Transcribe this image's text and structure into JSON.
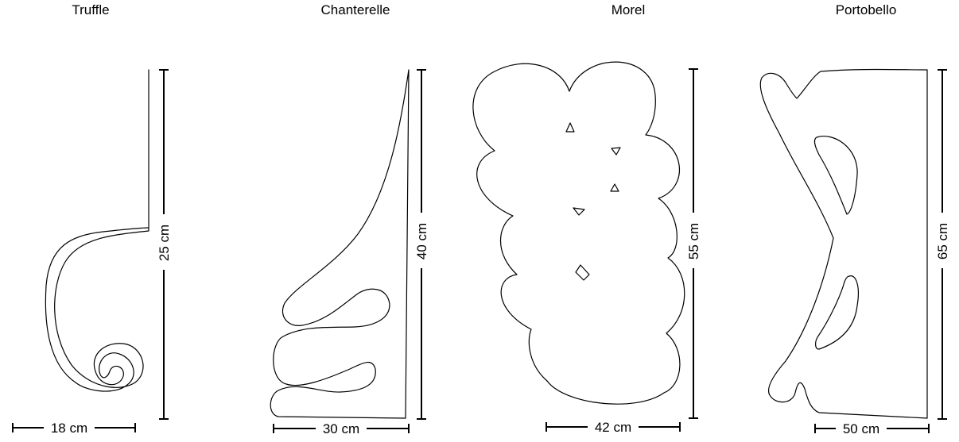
{
  "colors": {
    "stroke": "#000000",
    "background": "#ffffff"
  },
  "templates": [
    {
      "name": "Truffle",
      "height_label": "25 cm",
      "width_label": "18 cm"
    },
    {
      "name": "Chanterelle",
      "height_label": "40 cm",
      "width_label": "30 cm"
    },
    {
      "name": "Morel",
      "height_label": "55 cm",
      "width_label": "42 cm"
    },
    {
      "name": "Portobello",
      "height_label": "65 cm",
      "width_label": "50 cm"
    }
  ]
}
